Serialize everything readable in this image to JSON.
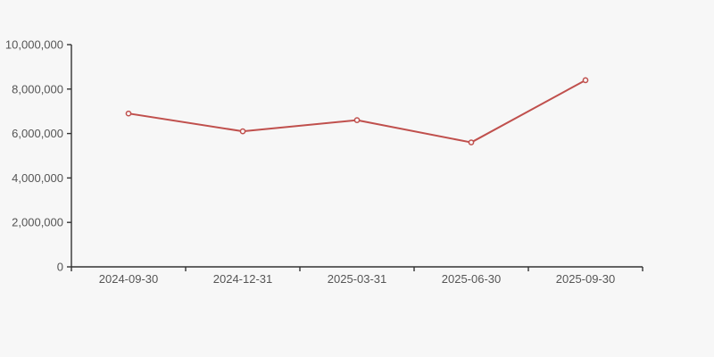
{
  "background_color": "#f7f7f7",
  "chart_data": {
    "type": "line",
    "title": "",
    "xlabel": "",
    "ylabel": "",
    "categories": [
      "2024-09-30",
      "2024-12-31",
      "2025-03-31",
      "2025-06-30",
      "2025-09-30"
    ],
    "values": [
      6900000,
      6100000,
      6600000,
      5600000,
      8400000
    ],
    "ylim": [
      0,
      10000000
    ],
    "y_ticks": [
      0,
      2000000,
      4000000,
      6000000,
      8000000,
      10000000
    ],
    "y_tick_labels": [
      "0",
      "2,000,000",
      "4,000,000",
      "6,000,000",
      "8,000,000",
      "10,000,000"
    ],
    "grid": false,
    "legend_position": "none",
    "line_color": "#c0504d",
    "marker_shape": "circle",
    "marker_fill": "#f7f7f7",
    "marker_stroke": "#c0504d",
    "axis_color": "#333333",
    "label_color": "#555555"
  }
}
